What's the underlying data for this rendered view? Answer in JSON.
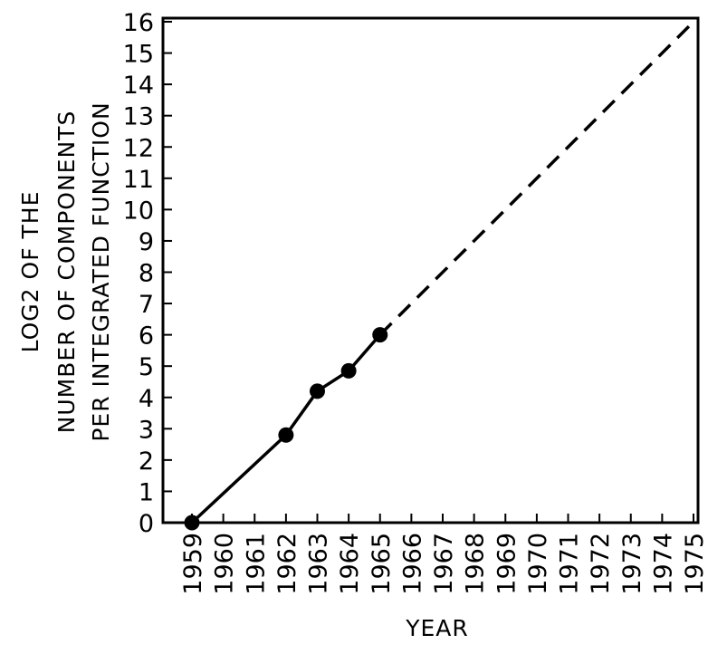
{
  "chart_data": {
    "type": "line",
    "xlabel": "YEAR",
    "ylabel_lines": [
      "LOG2 OF THE",
      "NUMBER OF COMPONENTS",
      "PER INTEGRATED FUNCTION"
    ],
    "x_ticks": [
      "1959",
      "1960",
      "1961",
      "1962",
      "1963",
      "1964",
      "1965",
      "1966",
      "1967",
      "1968",
      "1969",
      "1970",
      "1971",
      "1972",
      "1973",
      "1974",
      "1975"
    ],
    "y_ticks": [
      "0",
      "1",
      "2",
      "3",
      "4",
      "5",
      "6",
      "7",
      "8",
      "9",
      "10",
      "11",
      "12",
      "13",
      "14",
      "15",
      "16"
    ],
    "xlim": [
      1959,
      1975
    ],
    "ylim": [
      0,
      16
    ],
    "grid": false,
    "series": [
      {
        "style": "solid",
        "markers": true,
        "points": [
          {
            "x": 1959,
            "y": 0
          },
          {
            "x": 1962,
            "y": 2.8
          },
          {
            "x": 1963,
            "y": 4.2
          },
          {
            "x": 1964,
            "y": 4.85
          },
          {
            "x": 1965,
            "y": 6
          }
        ]
      },
      {
        "style": "dashed",
        "markers": false,
        "points": [
          {
            "x": 1965,
            "y": 6
          },
          {
            "x": 1975,
            "y": 16
          }
        ]
      }
    ]
  }
}
